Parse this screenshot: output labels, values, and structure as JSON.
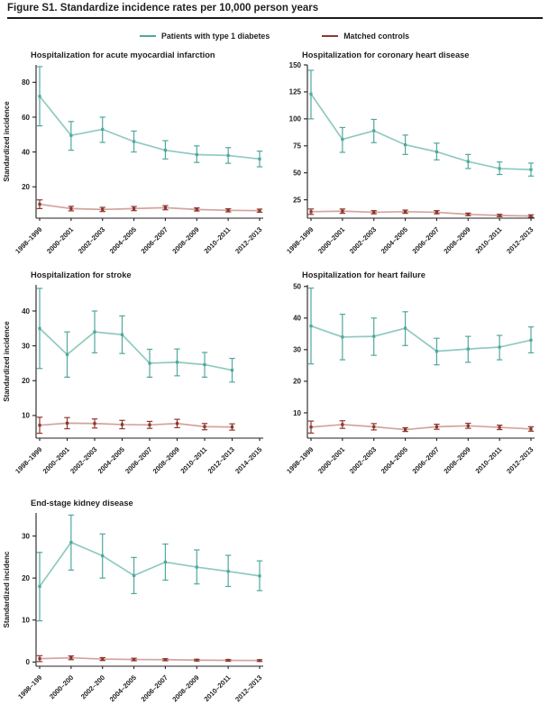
{
  "figure": {
    "title": "Figure S1. Standardize incidence rates per 10,000 person years"
  },
  "legend": {
    "items": [
      {
        "label": "Patients with type 1 diabetes",
        "color": "#4fa89e"
      },
      {
        "label": "Matched controls",
        "color": "#8e372e"
      }
    ]
  },
  "colors": {
    "diabetes_marker": "#4fa89e",
    "diabetes_line": "#8fcac1",
    "controls_marker": "#8e372e",
    "controls_line": "#d3a49d",
    "axis": "#231f20"
  },
  "chart_data": [
    {
      "type": "line",
      "title": "Hospitalization for acute myocardial infarction",
      "ylabel": "Standardized incidence",
      "xlabel": "",
      "ylim": [
        2,
        90
      ],
      "yticks": [
        20,
        40,
        60,
        80
      ],
      "categories": [
        "1998–1999",
        "2000–2001",
        "2002–2003",
        "2004–2005",
        "2006–2007",
        "2008–2009",
        "2010–2011",
        "2012–2013"
      ],
      "series": [
        {
          "name": "Patients with type 1 diabetes",
          "data_name": "type-1-diabetes-series",
          "color": "#4fa89e",
          "line_color": "#8fcac1",
          "values": [
            72,
            49.5,
            53,
            46,
            41,
            38.5,
            38,
            36
          ],
          "lo": [
            55,
            41,
            45.5,
            40,
            36,
            34,
            33.5,
            31.5
          ],
          "hi": [
            89,
            57.5,
            60,
            52,
            46.5,
            43.5,
            42.5,
            40.5
          ]
        },
        {
          "name": "Matched controls",
          "data_name": "matched-controls-series",
          "color": "#8e372e",
          "line_color": "#d3a49d",
          "values": [
            10,
            7.5,
            7,
            7.5,
            8,
            7,
            6.5,
            6.3
          ],
          "lo": [
            7.5,
            6.2,
            5.8,
            6.3,
            6.8,
            6.1,
            5.6,
            5.4
          ],
          "hi": [
            12.5,
            8.8,
            8.2,
            8.7,
            9.2,
            7.9,
            7.4,
            7.2
          ]
        }
      ]
    },
    {
      "type": "line",
      "title": "Hospitalization for coronary heart disease",
      "ylabel": "",
      "xlabel": "",
      "ylim": [
        8,
        150
      ],
      "yticks": [
        25,
        50,
        75,
        100,
        125,
        150
      ],
      "categories": [
        "1998–1999",
        "2000–2001",
        "2002–2003",
        "2004–2005",
        "2006–2007",
        "2008–2009",
        "2010–2011",
        "2012–2013"
      ],
      "series": [
        {
          "name": "Patients with type 1 diabetes",
          "data_name": "type-1-diabetes-series",
          "color": "#4fa89e",
          "line_color": "#8fcac1",
          "values": [
            123,
            81,
            89,
            76,
            69.5,
            60.5,
            54,
            53
          ],
          "lo": [
            100,
            69,
            78,
            67,
            62,
            54,
            48.5,
            47
          ],
          "hi": [
            145,
            92,
            99.5,
            85,
            77.5,
            67,
            60,
            59
          ]
        },
        {
          "name": "Matched controls",
          "data_name": "matched-controls-series",
          "color": "#8e372e",
          "line_color": "#d3a49d",
          "values": [
            14,
            14.5,
            13.5,
            14,
            13.5,
            11.5,
            10.5,
            10
          ],
          "lo": [
            11.5,
            12.5,
            12,
            12.5,
            12,
            10.3,
            9.4,
            8.9
          ],
          "hi": [
            16.5,
            16.5,
            15,
            15.5,
            15,
            12.7,
            11.6,
            11.1
          ]
        }
      ]
    },
    {
      "type": "line",
      "title": "Hospitalization for stroke",
      "ylabel": "Standardized incidence",
      "xlabel": "",
      "ylim": [
        3.5,
        47.5
      ],
      "yticks": [
        10,
        20,
        30,
        40
      ],
      "categories": [
        "1998–1999",
        "2000–2001",
        "2002–2003",
        "2004–2005",
        "2006–2007",
        "2008–2009",
        "2010–2011",
        "2012–2013",
        "2014–2015"
      ],
      "series": [
        {
          "name": "Patients with type 1 diabetes",
          "data_name": "type-1-diabetes-series",
          "color": "#4fa89e",
          "line_color": "#8fcac1",
          "values": [
            35,
            27.5,
            34,
            33.2,
            25,
            25.3,
            24.6,
            23,
            null
          ],
          "lo": [
            23.5,
            21,
            28,
            27.8,
            21,
            21.4,
            21,
            19.6,
            null
          ],
          "hi": [
            46.5,
            34,
            40,
            38.6,
            29,
            29.1,
            28.1,
            26.4,
            null
          ]
        },
        {
          "name": "Matched controls",
          "data_name": "matched-controls-series",
          "color": "#8e372e",
          "line_color": "#d3a49d",
          "values": [
            7.2,
            7.8,
            7.7,
            7.4,
            7.3,
            7.7,
            6.8,
            6.7,
            null
          ],
          "lo": [
            4.9,
            6.2,
            6.4,
            6.2,
            6.3,
            6.5,
            5.9,
            5.8,
            null
          ],
          "hi": [
            9.5,
            9.4,
            9.0,
            8.6,
            8.3,
            8.9,
            7.7,
            7.6,
            null
          ]
        }
      ]
    },
    {
      "type": "line",
      "title": "Hospitalization for heart failure",
      "ylabel": "",
      "xlabel": "",
      "ylim": [
        2,
        50.5
      ],
      "yticks": [
        10,
        20,
        30,
        40,
        50
      ],
      "categories": [
        "1998–1999",
        "2000–2001",
        "2002–2003",
        "2004–2005",
        "2006–2007",
        "2008–2009",
        "2010–2011",
        "2012–2013"
      ],
      "series": [
        {
          "name": "Patients with type 1 diabetes",
          "data_name": "type-1-diabetes-series",
          "color": "#4fa89e",
          "line_color": "#8fcac1",
          "values": [
            37.5,
            34,
            34.2,
            36.8,
            29.5,
            30.2,
            30.8,
            33
          ],
          "lo": [
            25.5,
            26.8,
            28.2,
            31.3,
            25.2,
            26,
            26.8,
            29
          ],
          "hi": [
            49.5,
            41.2,
            40,
            42,
            33.6,
            34.2,
            34.5,
            37.2
          ]
        },
        {
          "name": "Matched controls",
          "data_name": "matched-controls-series",
          "color": "#8e372e",
          "line_color": "#d3a49d",
          "values": [
            5.5,
            6.3,
            5.6,
            4.7,
            5.6,
            5.9,
            5.4,
            4.9
          ],
          "lo": [
            3.6,
            5.1,
            4.6,
            4.1,
            4.8,
            5.1,
            4.7,
            4.2
          ],
          "hi": [
            7.4,
            7.5,
            6.6,
            5.3,
            6.4,
            6.7,
            6.1,
            5.6
          ]
        }
      ]
    },
    {
      "type": "line",
      "title": "End-stage kidney disease",
      "ylabel": "Standardized incidenc",
      "xlabel": "",
      "ylim": [
        -1,
        35.5
      ],
      "yticks": [
        0,
        10,
        20,
        30
      ],
      "categories": [
        "1998–199",
        "2000–200",
        "2002–200",
        "2004–2005",
        "2006–2007",
        "2008–2009",
        "2010–2011",
        "2012–2013"
      ],
      "series": [
        {
          "name": "Patients with type 1 diabetes",
          "data_name": "type-1-diabetes-series",
          "color": "#4fa89e",
          "line_color": "#8fcac1",
          "values": [
            18,
            28.5,
            25.3,
            20.6,
            23.8,
            22.6,
            21.6,
            20.5
          ],
          "lo": [
            9.8,
            21.9,
            20,
            16.3,
            19.5,
            18.6,
            18,
            17
          ],
          "hi": [
            26.1,
            35,
            30.5,
            24.9,
            28.1,
            26.7,
            25.4,
            24.1
          ]
        },
        {
          "name": "Matched controls",
          "data_name": "matched-controls-series",
          "color": "#8e372e",
          "line_color": "#d3a49d",
          "values": [
            0.8,
            1.0,
            0.7,
            0.6,
            0.55,
            0.45,
            0.4,
            0.35
          ],
          "lo": [
            0.1,
            0.55,
            0.35,
            0.3,
            0.3,
            0.25,
            0.2,
            0.15
          ],
          "hi": [
            1.5,
            1.45,
            1.05,
            0.9,
            0.8,
            0.65,
            0.6,
            0.55
          ]
        }
      ]
    }
  ]
}
